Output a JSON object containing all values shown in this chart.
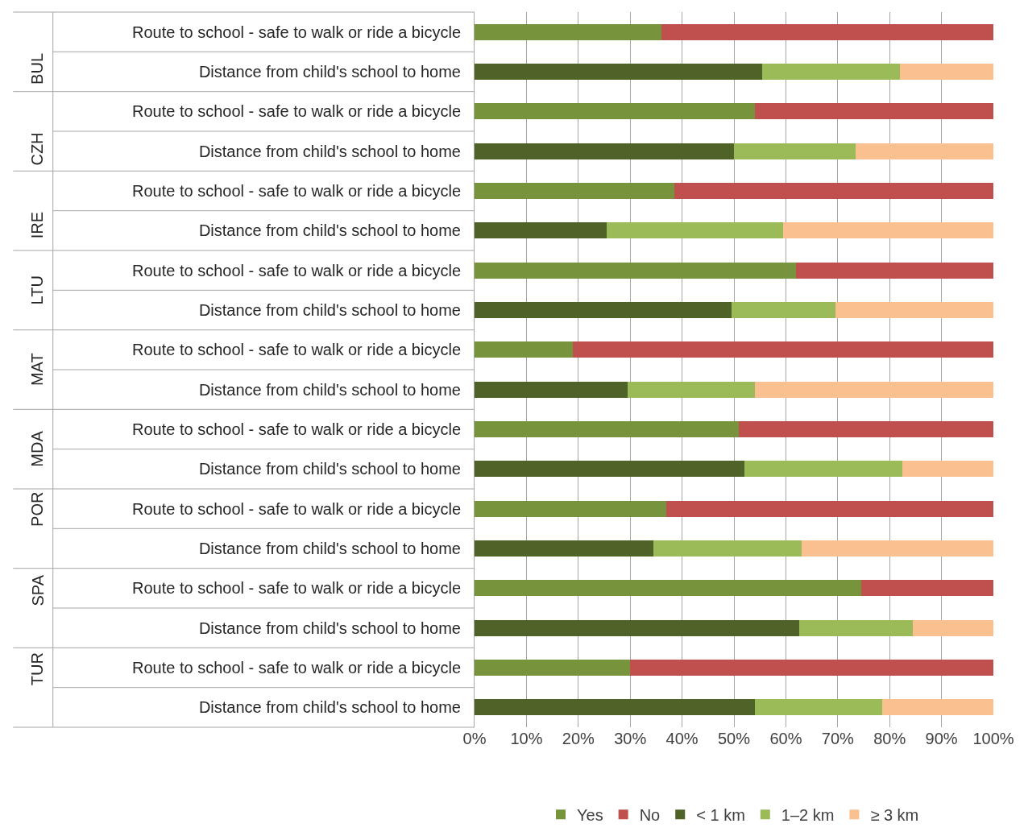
{
  "chart_data": {
    "type": "bar",
    "orientation": "horizontal",
    "stacked": true,
    "categories": [
      "Route to school - safe to walk or ride a bicycle",
      "Distance from child's school to home",
      "Route to school - safe to walk or ride a bicycle",
      "Distance from child's school to home",
      "Route to school - safe to walk or ride a bicycle",
      "Distance from child's school to home",
      "Route to school - safe to walk or ride a bicycle",
      "Distance from child's school to home",
      "Route to school - safe to walk or ride a bicycle",
      "Distance from child's school to home",
      "Route to school - safe to walk or ride a bicycle",
      "Distance from child's school to home",
      "Route to school - safe to walk or ride a bicycle",
      "Distance from child's school to home",
      "Route to school - safe to walk or ride a bicycle",
      "Distance from child's school to home",
      "Route to school - safe to walk or ride a bicycle",
      "Distance from child's school to home"
    ],
    "annotations": [
      "BUL",
      "CZH",
      "IRE",
      "LTU",
      "MAT",
      "MDA",
      "POR",
      "SPA",
      "TUR"
    ],
    "series": [
      {
        "name": "Yes",
        "color": "#77933c",
        "values": [
          36,
          null,
          54,
          null,
          38.5,
          null,
          62,
          null,
          19,
          null,
          51,
          null,
          37,
          null,
          74.5,
          null,
          30,
          null
        ]
      },
      {
        "name": "No",
        "color": "#c0504d",
        "values": [
          64,
          null,
          46,
          null,
          61.5,
          null,
          38,
          null,
          81,
          null,
          49,
          null,
          63,
          null,
          25.5,
          null,
          70,
          null
        ]
      },
      {
        "name": "< 1 km",
        "color": "#4f6228",
        "values": [
          null,
          55.5,
          null,
          50,
          null,
          25.5,
          null,
          49.5,
          null,
          29.5,
          null,
          52,
          null,
          34.5,
          null,
          62.5,
          null,
          54
        ]
      },
      {
        "name": "1–2 km",
        "color": "#9bbb59",
        "values": [
          null,
          26.5,
          null,
          23.5,
          null,
          34,
          null,
          20,
          null,
          24.5,
          null,
          30.5,
          null,
          28.5,
          null,
          22,
          null,
          24.5
        ]
      },
      {
        "name": "≥ 3 km",
        "color": "#fac090",
        "values": [
          null,
          18,
          null,
          26.5,
          null,
          40.5,
          null,
          30.5,
          null,
          46,
          null,
          17.5,
          null,
          37,
          null,
          15.5,
          null,
          21.5
        ]
      }
    ],
    "xlim": [
      0,
      100
    ],
    "xticks": [
      {
        "value": 0,
        "label": "0%"
      },
      {
        "value": 10,
        "label": "10%"
      },
      {
        "value": 20,
        "label": "20%"
      },
      {
        "value": 30,
        "label": "30%"
      },
      {
        "value": 40,
        "label": "40%"
      },
      {
        "value": 50,
        "label": "50%"
      },
      {
        "value": 60,
        "label": "60%"
      },
      {
        "value": 70,
        "label": "70%"
      },
      {
        "value": 80,
        "label": "80%"
      },
      {
        "value": 90,
        "label": "90%"
      },
      {
        "value": 100,
        "label": "100%"
      }
    ],
    "grid": "x",
    "legend": "bottom"
  }
}
